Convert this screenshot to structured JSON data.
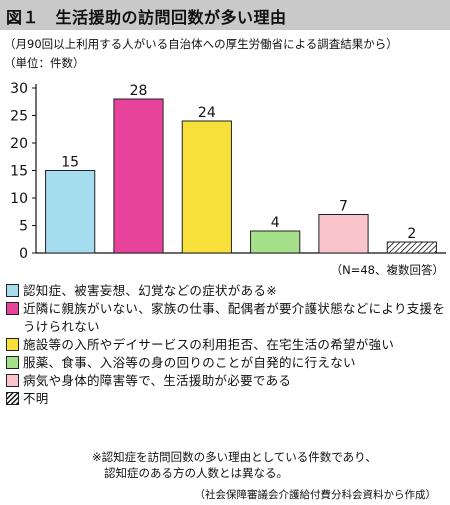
{
  "header": {
    "title": "図１　生活援助の訪問回数が多い理由",
    "subtitle": "（月90回以上利用する人がいる自治体への厚生労働省による調査結果から）",
    "unit": "（単位：件数）"
  },
  "chart_data": {
    "type": "bar",
    "categories": [
      "認知症、被害妄想、幻覚などの症状がある※",
      "近隣に親族がいない、家族の仕事、配偶者が要介護状態などにより支援をうけられない",
      "施設等の入所やデイサービスの利用拒否、在宅生活の希望が強い",
      "服薬、食事、入浴等の身の回りのことが自発的に行えない",
      "病気や身体的障害等で、生活援助が必要である",
      "不明"
    ],
    "values": [
      15,
      28,
      24,
      4,
      7,
      2
    ],
    "colors": [
      "#a5dcee",
      "#e8439a",
      "#f7e03a",
      "#a7e08a",
      "#f9c4cc",
      "hatch"
    ],
    "yticks": [
      0,
      5,
      10,
      15,
      20,
      25,
      30
    ],
    "ylim": [
      0,
      30
    ],
    "grid": false,
    "legend": "bottom",
    "annotation": "（N=48、複数回答）"
  },
  "legend": {
    "items": [
      {
        "label": "認知症、被害妄想、幻覚などの症状がある※",
        "color": "#a5dcee"
      },
      {
        "label": "近隣に親族がいない、家族の仕事、配偶者が要介護状態などにより支援をうけられない",
        "color": "#e8439a"
      },
      {
        "label": "施設等の入所やデイサービスの利用拒否、在宅生活の希望が強い",
        "color": "#f7e03a"
      },
      {
        "label": "服薬、食事、入浴等の身の回りのことが自発的に行えない",
        "color": "#a7e08a"
      },
      {
        "label": "病気や身体的障害等で、生活援助が必要である",
        "color": "#f9c4cc"
      },
      {
        "label": "不明",
        "color": "hatch"
      }
    ]
  },
  "notes": {
    "footnote_line1": "※認知症を訪問回数の多い理由としている件数であり、",
    "footnote_line2": "認知症のある方の人数とは異なる。",
    "source": "（社会保障審議会介護給付費分科会資料から作成）"
  }
}
